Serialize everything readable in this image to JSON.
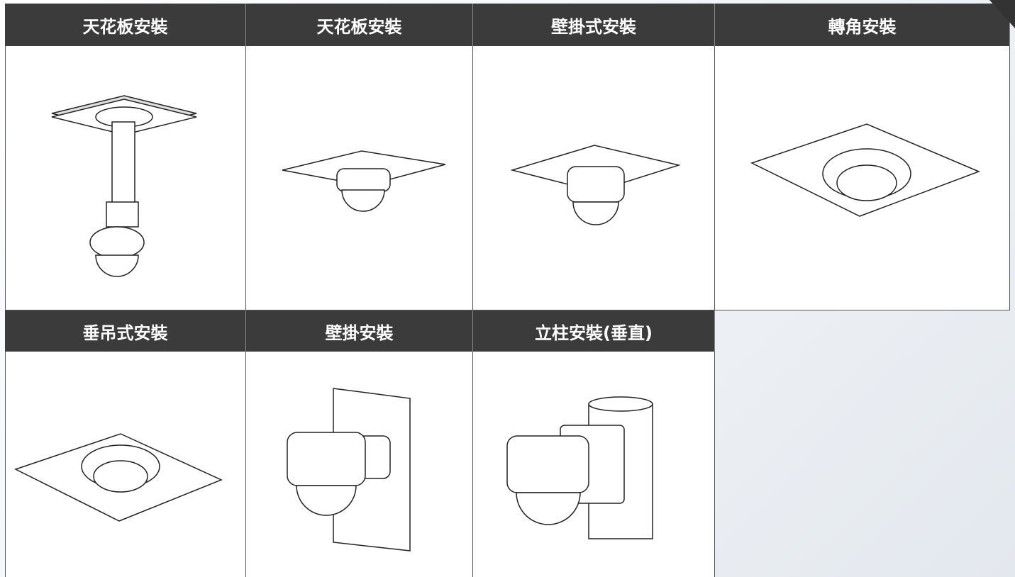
{
  "items": [
    {
      "label": "天花板安裝"
    },
    {
      "label": "天花板安裝"
    },
    {
      "label": "壁掛式安裝"
    },
    {
      "label": "轉角安裝"
    },
    {
      "label": "垂吊式安裝"
    },
    {
      "label": "壁掛安裝"
    },
    {
      "label": "立柱安裝(垂直)"
    }
  ]
}
